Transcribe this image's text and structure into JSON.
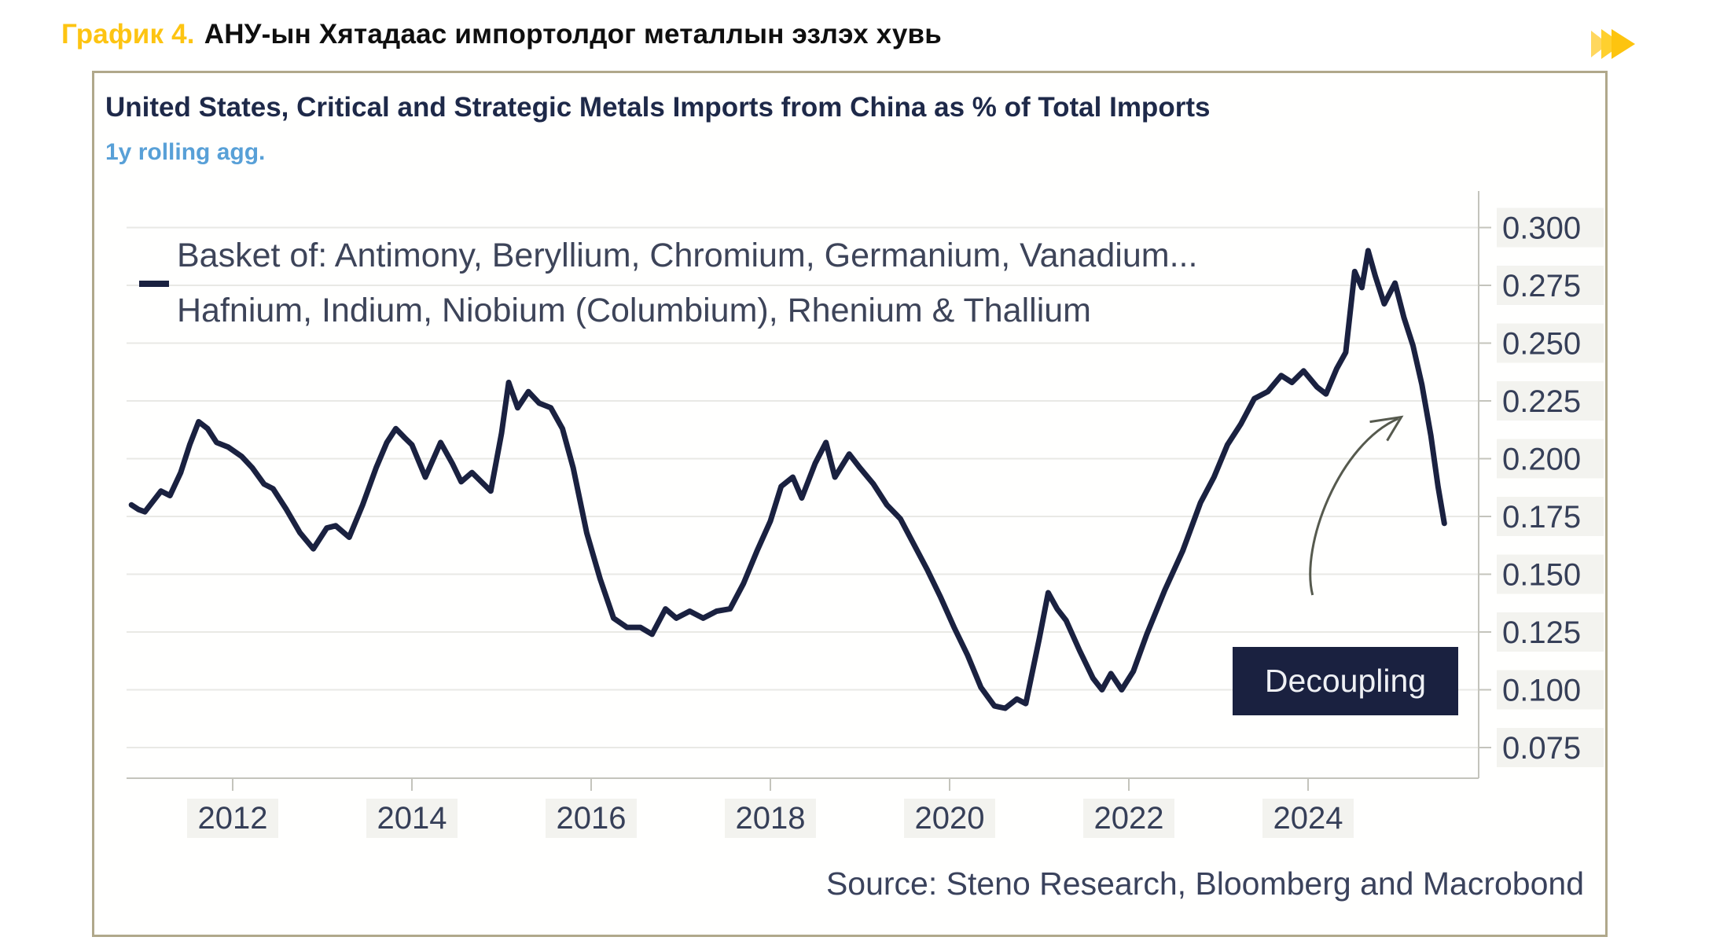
{
  "header": {
    "label": "График 4.",
    "title": "АНУ-ын Хятадаас импортолдог металлын эзлэх хувь",
    "accent_color": "#fdc412",
    "icon": "fast-forward-arrows"
  },
  "chart": {
    "title": "United States, Critical and Strategic Metals Imports from China as % of Total Imports",
    "subtitle": "1y rolling agg.",
    "legend_line1": "Basket of: Antimony, Beryllium, Chromium, Germanium, Vanadium...",
    "legend_line2": "Hafnium, Indium, Niobium (Columbium), Rhenium & Thallium",
    "annotation_label": "Decoupling",
    "source": "Source: Steno Research, Bloomberg and Macrobond",
    "colors": {
      "line": "#1a2140",
      "gridline": "#e9e9e5",
      "axis": "#c4c4bc",
      "tick_label": "#363f58",
      "annotation_bg": "#1a2140",
      "annotation_text": "#eef0f4",
      "arrow": "#565a4e",
      "border": "#b0a88b",
      "label_bg": "#f3f3ef"
    }
  },
  "chart_data": {
    "type": "line",
    "title": "United States, Critical and Strategic Metals Imports from China as % of Total Imports",
    "subtitle": "1y rolling agg.",
    "xlabel": "",
    "ylabel": "",
    "grid": true,
    "legend_position": "top-left",
    "x_range": [
      2010.8,
      2026.0
    ],
    "ylim": [
      0.0625,
      0.3125
    ],
    "x_ticks": [
      {
        "v": 2012,
        "label": "2012"
      },
      {
        "v": 2014,
        "label": "2014"
      },
      {
        "v": 2016,
        "label": "2016"
      },
      {
        "v": 2018,
        "label": "2018"
      },
      {
        "v": 2020,
        "label": "2020"
      },
      {
        "v": 2022,
        "label": "2022"
      },
      {
        "v": 2024,
        "label": "2024"
      }
    ],
    "y_ticks": [
      {
        "v": 0.3,
        "label": "0.300"
      },
      {
        "v": 0.275,
        "label": "0.275"
      },
      {
        "v": 0.25,
        "label": "0.250"
      },
      {
        "v": 0.225,
        "label": "0.225"
      },
      {
        "v": 0.2,
        "label": "0.200"
      },
      {
        "v": 0.175,
        "label": "0.175"
      },
      {
        "v": 0.15,
        "label": "0.150"
      },
      {
        "v": 0.125,
        "label": "0.125"
      },
      {
        "v": 0.1,
        "label": "0.100"
      },
      {
        "v": 0.075,
        "label": "0.075"
      }
    ],
    "series": [
      {
        "name": "Basket of: Antimony, Beryllium, Chromium, Germanium, Vanadium... Hafnium, Indium, Niobium (Columbium), Rhenium & Thallium",
        "color": "#1a2140",
        "points": [
          [
            2010.87,
            0.18
          ],
          [
            2010.95,
            0.178
          ],
          [
            2011.02,
            0.177
          ],
          [
            2011.1,
            0.181
          ],
          [
            2011.2,
            0.186
          ],
          [
            2011.3,
            0.184
          ],
          [
            2011.42,
            0.194
          ],
          [
            2011.52,
            0.206
          ],
          [
            2011.62,
            0.216
          ],
          [
            2011.72,
            0.213
          ],
          [
            2011.82,
            0.207
          ],
          [
            2011.95,
            0.205
          ],
          [
            2012.1,
            0.201
          ],
          [
            2012.22,
            0.196
          ],
          [
            2012.35,
            0.189
          ],
          [
            2012.45,
            0.187
          ],
          [
            2012.6,
            0.178
          ],
          [
            2012.75,
            0.168
          ],
          [
            2012.9,
            0.161
          ],
          [
            2013.05,
            0.17
          ],
          [
            2013.15,
            0.171
          ],
          [
            2013.3,
            0.166
          ],
          [
            2013.45,
            0.18
          ],
          [
            2013.6,
            0.196
          ],
          [
            2013.72,
            0.207
          ],
          [
            2013.82,
            0.213
          ],
          [
            2013.92,
            0.209
          ],
          [
            2014.0,
            0.206
          ],
          [
            2014.15,
            0.192
          ],
          [
            2014.32,
            0.207
          ],
          [
            2014.45,
            0.198
          ],
          [
            2014.55,
            0.19
          ],
          [
            2014.67,
            0.194
          ],
          [
            2014.88,
            0.186
          ],
          [
            2015.0,
            0.211
          ],
          [
            2015.08,
            0.233
          ],
          [
            2015.18,
            0.222
          ],
          [
            2015.3,
            0.229
          ],
          [
            2015.42,
            0.224
          ],
          [
            2015.55,
            0.222
          ],
          [
            2015.68,
            0.213
          ],
          [
            2015.8,
            0.196
          ],
          [
            2015.95,
            0.168
          ],
          [
            2016.1,
            0.148
          ],
          [
            2016.25,
            0.131
          ],
          [
            2016.4,
            0.127
          ],
          [
            2016.55,
            0.127
          ],
          [
            2016.68,
            0.124
          ],
          [
            2016.83,
            0.135
          ],
          [
            2016.95,
            0.131
          ],
          [
            2017.1,
            0.134
          ],
          [
            2017.25,
            0.131
          ],
          [
            2017.4,
            0.134
          ],
          [
            2017.55,
            0.135
          ],
          [
            2017.7,
            0.146
          ],
          [
            2017.85,
            0.16
          ],
          [
            2018.0,
            0.173
          ],
          [
            2018.12,
            0.188
          ],
          [
            2018.25,
            0.192
          ],
          [
            2018.35,
            0.183
          ],
          [
            2018.5,
            0.198
          ],
          [
            2018.62,
            0.207
          ],
          [
            2018.72,
            0.192
          ],
          [
            2018.88,
            0.202
          ],
          [
            2019.0,
            0.196
          ],
          [
            2019.15,
            0.189
          ],
          [
            2019.3,
            0.18
          ],
          [
            2019.45,
            0.174
          ],
          [
            2019.6,
            0.163
          ],
          [
            2019.75,
            0.152
          ],
          [
            2019.9,
            0.14
          ],
          [
            2020.05,
            0.127
          ],
          [
            2020.2,
            0.115
          ],
          [
            2020.35,
            0.101
          ],
          [
            2020.5,
            0.093
          ],
          [
            2020.62,
            0.092
          ],
          [
            2020.75,
            0.096
          ],
          [
            2020.85,
            0.094
          ],
          [
            2021.0,
            0.122
          ],
          [
            2021.1,
            0.142
          ],
          [
            2021.2,
            0.135
          ],
          [
            2021.3,
            0.13
          ],
          [
            2021.45,
            0.117
          ],
          [
            2021.6,
            0.105
          ],
          [
            2021.7,
            0.1
          ],
          [
            2021.8,
            0.107
          ],
          [
            2021.92,
            0.1
          ],
          [
            2022.05,
            0.108
          ],
          [
            2022.2,
            0.124
          ],
          [
            2022.4,
            0.143
          ],
          [
            2022.6,
            0.16
          ],
          [
            2022.8,
            0.181
          ],
          [
            2022.95,
            0.192
          ],
          [
            2023.1,
            0.206
          ],
          [
            2023.25,
            0.215
          ],
          [
            2023.4,
            0.226
          ],
          [
            2023.55,
            0.229
          ],
          [
            2023.7,
            0.236
          ],
          [
            2023.82,
            0.233
          ],
          [
            2023.95,
            0.238
          ],
          [
            2024.1,
            0.231
          ],
          [
            2024.2,
            0.228
          ],
          [
            2024.32,
            0.239
          ],
          [
            2024.42,
            0.246
          ],
          [
            2024.52,
            0.281
          ],
          [
            2024.6,
            0.274
          ],
          [
            2024.67,
            0.29
          ],
          [
            2024.75,
            0.279
          ],
          [
            2024.85,
            0.267
          ],
          [
            2024.97,
            0.276
          ],
          [
            2025.07,
            0.261
          ],
          [
            2025.17,
            0.249
          ],
          [
            2025.27,
            0.232
          ],
          [
            2025.37,
            0.21
          ],
          [
            2025.45,
            0.188
          ],
          [
            2025.52,
            0.172
          ]
        ]
      }
    ],
    "annotations": [
      {
        "type": "label",
        "text": "Decoupling",
        "x_range": [
          2023.16,
          2025.67
        ],
        "y_range": [
          0.089,
          0.119
        ]
      },
      {
        "type": "arrow",
        "from": [
          2024.05,
          0.141
        ],
        "to": [
          2025.04,
          0.218
        ]
      }
    ]
  }
}
